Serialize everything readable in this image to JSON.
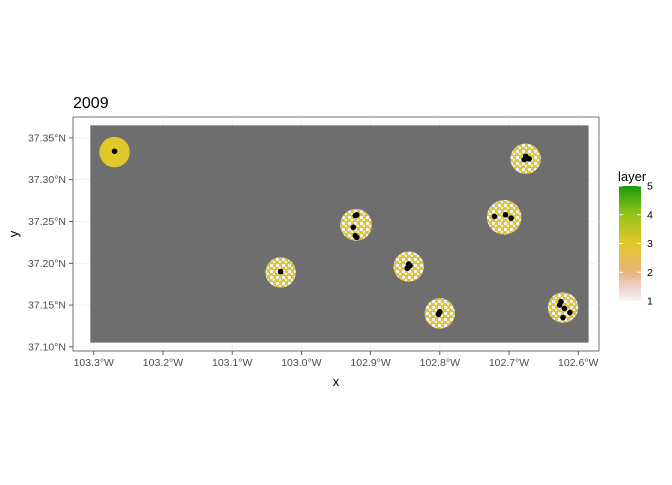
{
  "chart_data": {
    "type": "heatmap",
    "title": "2009",
    "xlabel": "x",
    "ylabel": "y",
    "xlim": [
      -103.33,
      -102.57
    ],
    "ylim": [
      37.095,
      37.375
    ],
    "x_ticks": [
      {
        "value": -103.3,
        "label": "103.3°W"
      },
      {
        "value": -103.2,
        "label": "103.2°W"
      },
      {
        "value": -103.1,
        "label": "103.1°W"
      },
      {
        "value": -103.0,
        "label": "103.0°W"
      },
      {
        "value": -102.9,
        "label": "102.9°W"
      },
      {
        "value": -102.8,
        "label": "102.8°W"
      },
      {
        "value": -102.7,
        "label": "102.7°W"
      },
      {
        "value": -102.6,
        "label": "102.6°W"
      }
    ],
    "y_ticks": [
      {
        "value": 37.1,
        "label": "37.10°N"
      },
      {
        "value": 37.15,
        "label": "37.15°N"
      },
      {
        "value": 37.2,
        "label": "37.20°N"
      },
      {
        "value": 37.25,
        "label": "37.25°N"
      },
      {
        "value": 37.3,
        "label": "37.30°N"
      },
      {
        "value": 37.35,
        "label": "37.35°N"
      }
    ],
    "raster_extent": {
      "xmin": -103.305,
      "xmax": -102.585,
      "ymin": 37.105,
      "ymax": 37.365
    },
    "na_color": "#6e6e6e",
    "legend": {
      "title": "layer",
      "position": "right",
      "min": 1,
      "max": 5,
      "ticks": [
        {
          "value": 1,
          "label": "1"
        },
        {
          "value": 2,
          "label": "2"
        },
        {
          "value": 3,
          "label": "3"
        },
        {
          "value": 4,
          "label": "4"
        },
        {
          "value": 5,
          "label": "5"
        }
      ],
      "gradient": [
        {
          "value": 1,
          "color": "#f5f5f5"
        },
        {
          "value": 1.5,
          "color": "#f0d0c8"
        },
        {
          "value": 2,
          "color": "#e6b47a"
        },
        {
          "value": 3,
          "color": "#e1c82a"
        },
        {
          "value": 4,
          "color": "#98c41a"
        },
        {
          "value": 5,
          "color": "#1a9a0a"
        }
      ]
    },
    "buffers": [
      {
        "cx": -103.27,
        "cy": 37.333,
        "r": 0.022,
        "value": 3.0,
        "mix": "solid"
      },
      {
        "cx": -103.03,
        "cy": 37.189,
        "r": 0.022,
        "value": 3.0,
        "mix": "mixed"
      },
      {
        "cx": -102.921,
        "cy": 37.246,
        "r": 0.023,
        "value": 2.9,
        "mix": "mixed"
      },
      {
        "cx": -102.845,
        "cy": 37.196,
        "r": 0.022,
        "value": 2.9,
        "mix": "mixed"
      },
      {
        "cx": -102.8,
        "cy": 37.14,
        "r": 0.022,
        "value": 2.9,
        "mix": "mixed"
      },
      {
        "cx": -102.707,
        "cy": 37.255,
        "r": 0.025,
        "value": 2.9,
        "mix": "mixed"
      },
      {
        "cx": -102.676,
        "cy": 37.325,
        "r": 0.022,
        "value": 2.9,
        "mix": "mixed"
      },
      {
        "cx": -102.622,
        "cy": 37.147,
        "r": 0.022,
        "value": 2.9,
        "mix": "mixed"
      }
    ],
    "points": [
      {
        "x": -103.27,
        "y": 37.334
      },
      {
        "x": -103.03,
        "y": 37.19
      },
      {
        "x": -102.92,
        "y": 37.258
      },
      {
        "x": -102.922,
        "y": 37.257
      },
      {
        "x": -102.925,
        "y": 37.243
      },
      {
        "x": -102.922,
        "y": 37.233
      },
      {
        "x": -102.92,
        "y": 37.231
      },
      {
        "x": -102.845,
        "y": 37.199
      },
      {
        "x": -102.843,
        "y": 37.197
      },
      {
        "x": -102.847,
        "y": 37.194
      },
      {
        "x": -102.8,
        "y": 37.142
      },
      {
        "x": -102.802,
        "y": 37.139
      },
      {
        "x": -102.721,
        "y": 37.256
      },
      {
        "x": -102.705,
        "y": 37.258
      },
      {
        "x": -102.697,
        "y": 37.254
      },
      {
        "x": -102.676,
        "y": 37.328
      },
      {
        "x": -102.674,
        "y": 37.326
      },
      {
        "x": -102.678,
        "y": 37.324
      },
      {
        "x": -102.671,
        "y": 37.325
      },
      {
        "x": -102.625,
        "y": 37.154
      },
      {
        "x": -102.627,
        "y": 37.15
      },
      {
        "x": -102.62,
        "y": 37.146
      },
      {
        "x": -102.612,
        "y": 37.141
      },
      {
        "x": -102.622,
        "y": 37.135
      }
    ]
  }
}
